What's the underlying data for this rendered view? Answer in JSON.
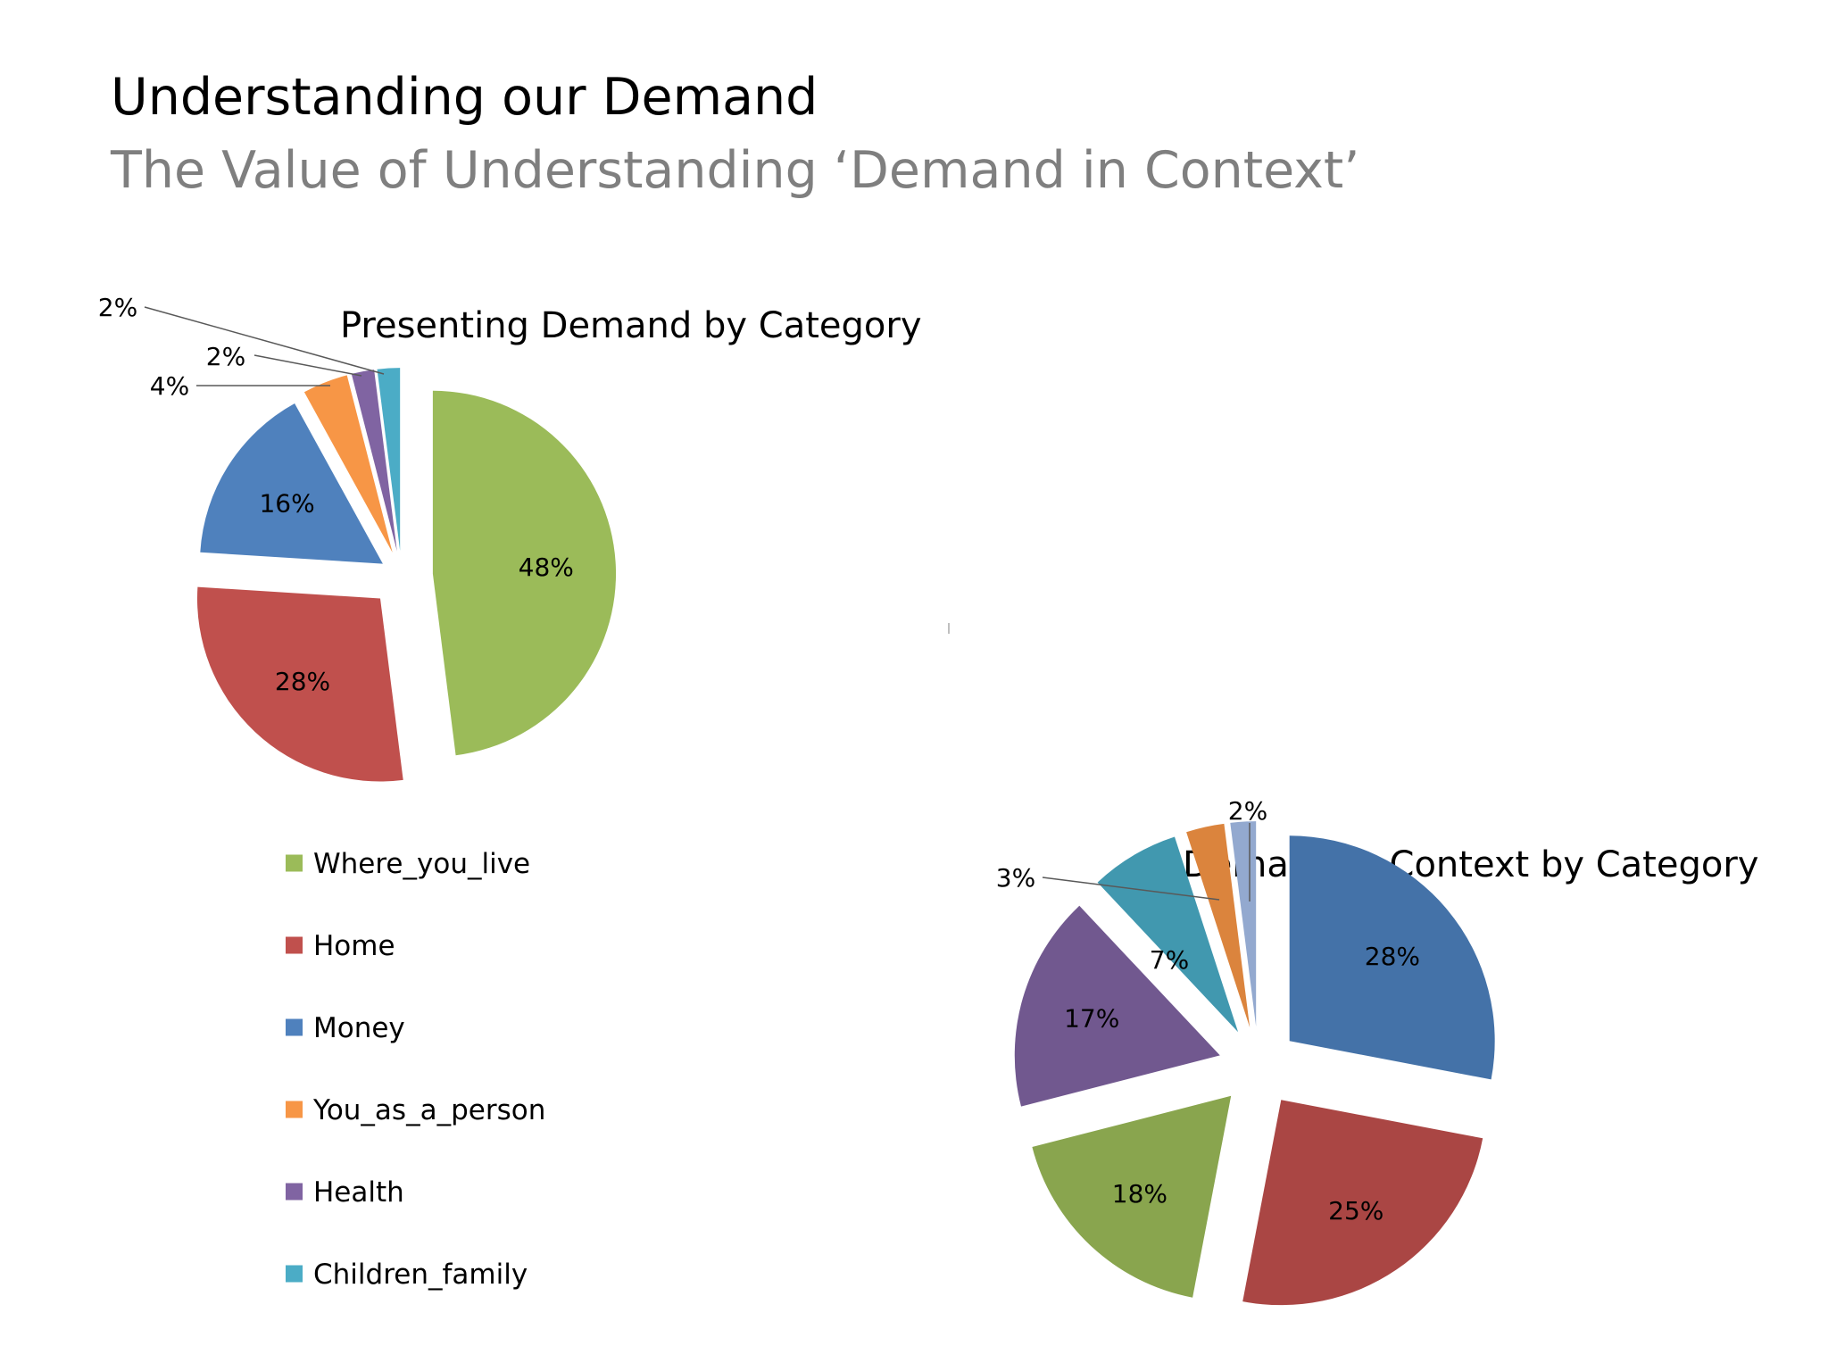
{
  "slide": {
    "title": "Understanding our Demand",
    "subtitle": "The Value of Understanding ‘Demand in Context’"
  },
  "chart_data": [
    {
      "type": "pie",
      "title": "Presenting Demand by Category",
      "legend_position": "bottom",
      "slices": [
        {
          "name": "Where_you_live",
          "value": 48,
          "label": "48%",
          "color": "#9bbb59"
        },
        {
          "name": "Home",
          "value": 28,
          "label": "28%",
          "color": "#c0504d"
        },
        {
          "name": "Money",
          "value": 16,
          "label": "16%",
          "color": "#4f81bd"
        },
        {
          "name": "You_as_a_person",
          "value": 4,
          "label": "4%",
          "color": "#f79646"
        },
        {
          "name": "Health",
          "value": 2,
          "label": "2%",
          "color": "#8064a2"
        },
        {
          "name": "Children_family",
          "value": 2,
          "label": "2%",
          "color": "#4bacc6"
        }
      ]
    },
    {
      "type": "pie",
      "title": "Demand in Context by Category",
      "slices": [
        {
          "value": 28,
          "label": "28%",
          "color": "#4472a8"
        },
        {
          "value": 25,
          "label": "25%",
          "color": "#aa4644"
        },
        {
          "value": 18,
          "label": "18%",
          "color": "#89a54e"
        },
        {
          "value": 17,
          "label": "17%",
          "color": "#71588f"
        },
        {
          "value": 7,
          "label": "7%",
          "color": "#4198af"
        },
        {
          "value": 3,
          "label": "3%",
          "color": "#db843d"
        },
        {
          "value": 2,
          "label": "2%",
          "color": "#93a9cf"
        }
      ]
    }
  ]
}
